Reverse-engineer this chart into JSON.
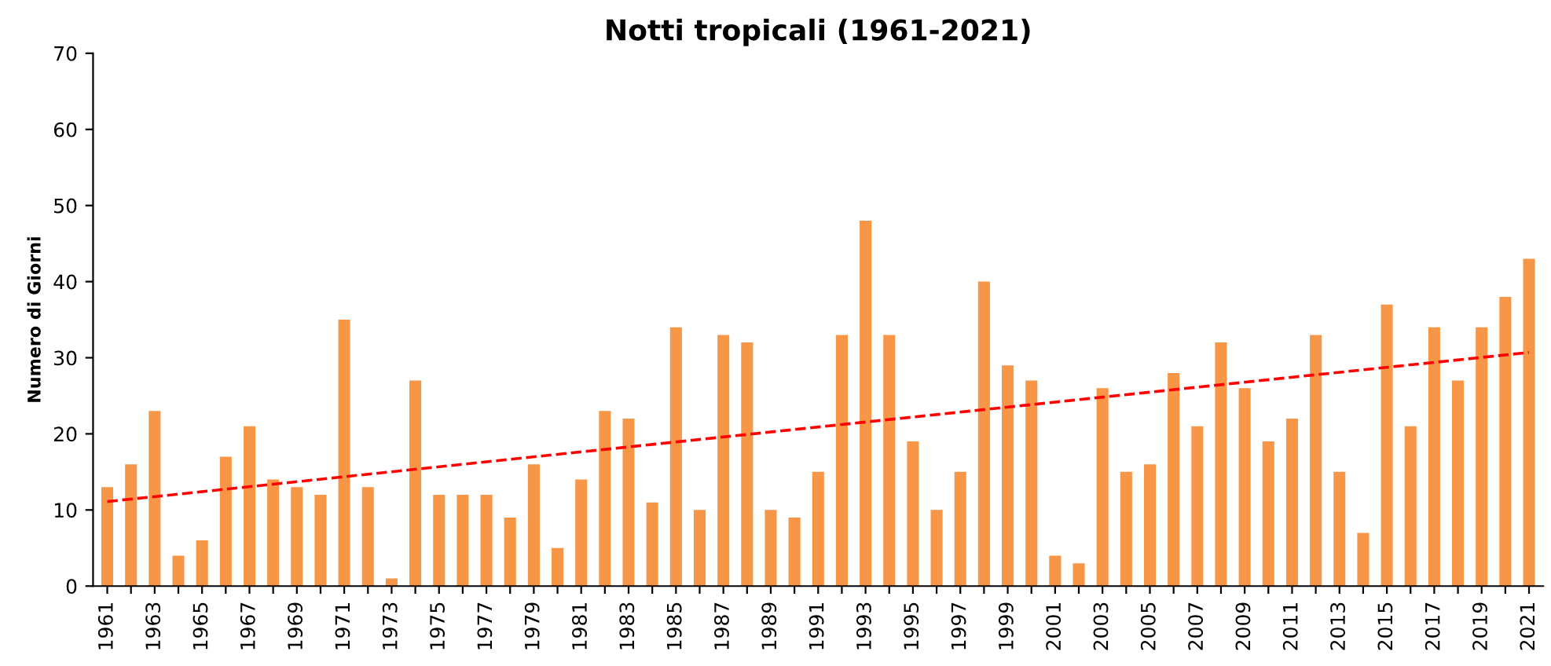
{
  "chart_data": {
    "type": "bar",
    "title": "Notti tropicali (1961-2021)",
    "ylabel": "Numero di Giorni",
    "categories": [
      "1961",
      null,
      "1963",
      null,
      "1965",
      null,
      "1967",
      null,
      "1969",
      null,
      "1971",
      null,
      "1973",
      null,
      "1975",
      null,
      "1977",
      null,
      "1979",
      null,
      "1981",
      null,
      "1983",
      null,
      "1985",
      null,
      "1987",
      null,
      "1989",
      null,
      "1991",
      null,
      "1993",
      null,
      "1995",
      null,
      "1997",
      null,
      "1999",
      null,
      "2001",
      null,
      "2003",
      null,
      "2005",
      null,
      "2007",
      null,
      "2009",
      null,
      "2011",
      null,
      "2013",
      null,
      "2015",
      null,
      "2017",
      null,
      "2019",
      null,
      "2021"
    ],
    "series": [
      {
        "color": "#f79646",
        "values": [
          13,
          16,
          23,
          4,
          6,
          17,
          21,
          14,
          13,
          12,
          35,
          13,
          1,
          27,
          12,
          12,
          12,
          9,
          16,
          5,
          14,
          23,
          22,
          11,
          34,
          10,
          33,
          32,
          10,
          9,
          15,
          33,
          48,
          33,
          19,
          10,
          15,
          40,
          29,
          27,
          4,
          3,
          26,
          15,
          16,
          28,
          21,
          32,
          26,
          19,
          22,
          33,
          15,
          7,
          37,
          21,
          34,
          27,
          34,
          38,
          43
        ]
      },
      {
        "type": "line",
        "color": "#ff0000",
        "line_style": "dashed",
        "values": [
          11.1,
          null,
          null,
          null,
          null,
          null,
          null,
          null,
          null,
          null,
          null,
          null,
          null,
          null,
          null,
          null,
          null,
          null,
          null,
          null,
          null,
          null,
          null,
          null,
          null,
          null,
          null,
          null,
          null,
          null,
          null,
          null,
          null,
          null,
          null,
          null,
          null,
          null,
          null,
          null,
          null,
          null,
          null,
          null,
          null,
          null,
          null,
          null,
          null,
          null,
          null,
          null,
          null,
          null,
          null,
          null,
          null,
          null,
          null,
          null,
          30.7
        ]
      }
    ],
    "ylim": [
      0,
      70
    ],
    "yticks": [
      0,
      10,
      20,
      30,
      40,
      50,
      60,
      70
    ],
    "grid": false,
    "legend": false
  }
}
